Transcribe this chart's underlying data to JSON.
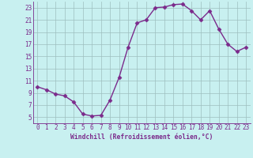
{
  "x": [
    0,
    1,
    2,
    3,
    4,
    5,
    6,
    7,
    8,
    9,
    10,
    11,
    12,
    13,
    14,
    15,
    16,
    17,
    18,
    19,
    20,
    21,
    22,
    23
  ],
  "y": [
    10.0,
    9.5,
    8.8,
    8.5,
    7.5,
    5.5,
    5.2,
    5.3,
    7.8,
    11.5,
    16.5,
    20.5,
    21.0,
    23.0,
    23.1,
    23.5,
    23.6,
    22.5,
    21.0,
    22.5,
    19.5,
    17.0,
    15.8,
    16.5
  ],
  "line_color": "#7b2a8b",
  "marker": "D",
  "marker_size": 2.5,
  "background_color": "#c8f0f0",
  "grid_color": "#9dbfbf",
  "xlabel": "Windchill (Refroidissement éolien,°C)",
  "xlabel_color": "#7b2a8b",
  "tick_color": "#7b2a8b",
  "ylim": [
    4,
    24
  ],
  "yticks": [
    5,
    7,
    9,
    11,
    13,
    15,
    17,
    19,
    21,
    23
  ],
  "xticks": [
    0,
    1,
    2,
    3,
    4,
    5,
    6,
    7,
    8,
    9,
    10,
    11,
    12,
    13,
    14,
    15,
    16,
    17,
    18,
    19,
    20,
    21,
    22,
    23
  ],
  "spine_color": "#7b2a8b",
  "tick_fontsize": 5.5,
  "xlabel_fontsize": 5.8,
  "linewidth": 1.0
}
